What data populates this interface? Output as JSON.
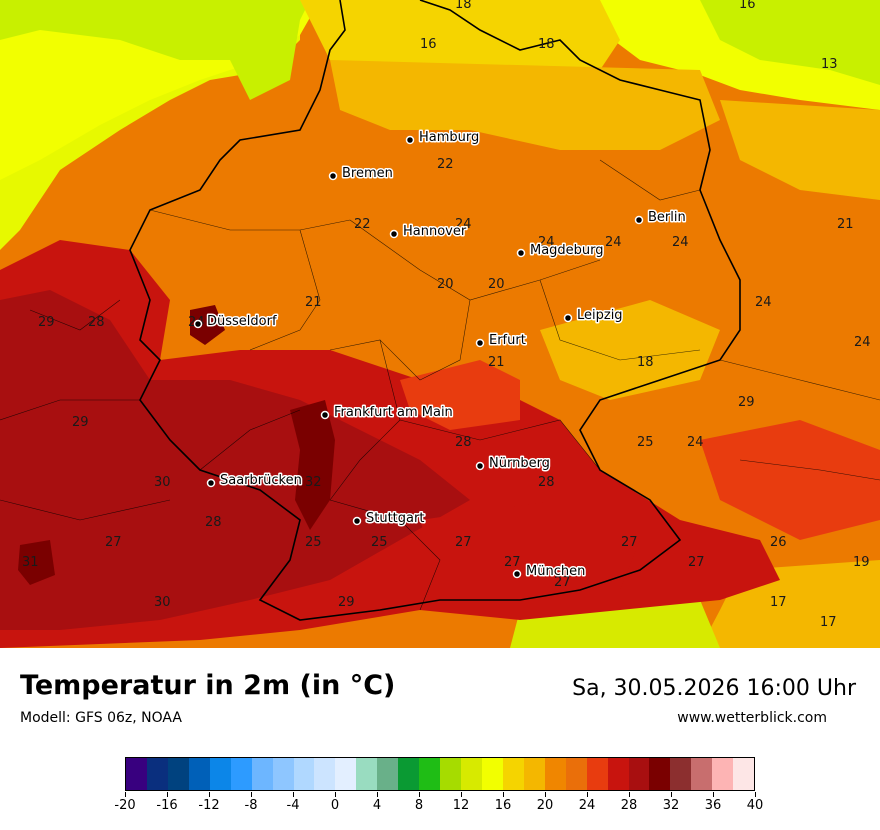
{
  "map": {
    "cities": [
      {
        "name": "Hamburg"
      },
      {
        "name": "Bremen"
      },
      {
        "name": "Hannover"
      },
      {
        "name": "Berlin"
      },
      {
        "name": "Magdeburg"
      },
      {
        "name": "Düsseldorf"
      },
      {
        "name": "Leipzig"
      },
      {
        "name": "Erfurt"
      },
      {
        "name": "Frankfurt am Main"
      },
      {
        "name": "Nürnberg"
      },
      {
        "name": "Saarbrücken"
      },
      {
        "name": "Stuttgart"
      },
      {
        "name": "München"
      }
    ],
    "values": [
      "18",
      "16",
      "16",
      "18",
      "13",
      "22",
      "22",
      "24",
      "24",
      "24",
      "24",
      "21",
      "20",
      "20",
      "21",
      "24",
      "29",
      "28",
      "24",
      "21",
      "18",
      "24",
      "29",
      "25",
      "24",
      "28",
      "29",
      "30",
      "32",
      "28",
      "28",
      "27",
      "25",
      "25",
      "27",
      "27",
      "27",
      "26",
      "31",
      "27",
      "27",
      "19",
      "30",
      "29",
      "17",
      "17"
    ]
  },
  "footer": {
    "title": "Temperatur in 2m (in °C)",
    "model": "Modell: GFS 06z, NOAA",
    "datetime": "Sa, 30.05.2026 16:00 Uhr",
    "website": "www.wetterblick.com"
  },
  "legend": {
    "ticks": [
      "-20",
      "-16",
      "-12",
      "-8",
      "-4",
      "0",
      "4",
      "8",
      "12",
      "16",
      "20",
      "24",
      "28",
      "32",
      "36",
      "40"
    ],
    "colors": [
      "#38007f",
      "#0a2f7e",
      "#00427f",
      "#0060b8",
      "#0c86e8",
      "#2d9bff",
      "#6db6ff",
      "#8ec6ff",
      "#b0d8ff",
      "#cce4ff",
      "#e3efff",
      "#99dcc0",
      "#69b089",
      "#0a9a33",
      "#1fbd15",
      "#a6dc00",
      "#d7ea00",
      "#f2ff00",
      "#f5d400",
      "#f4b700",
      "#f08600",
      "#ea6f0a",
      "#e83c0f",
      "#c8140e",
      "#a80f10",
      "#7a0000",
      "#8c2f2f",
      "#c86e6e",
      "#fdb4b4",
      "#fde6e6"
    ]
  }
}
